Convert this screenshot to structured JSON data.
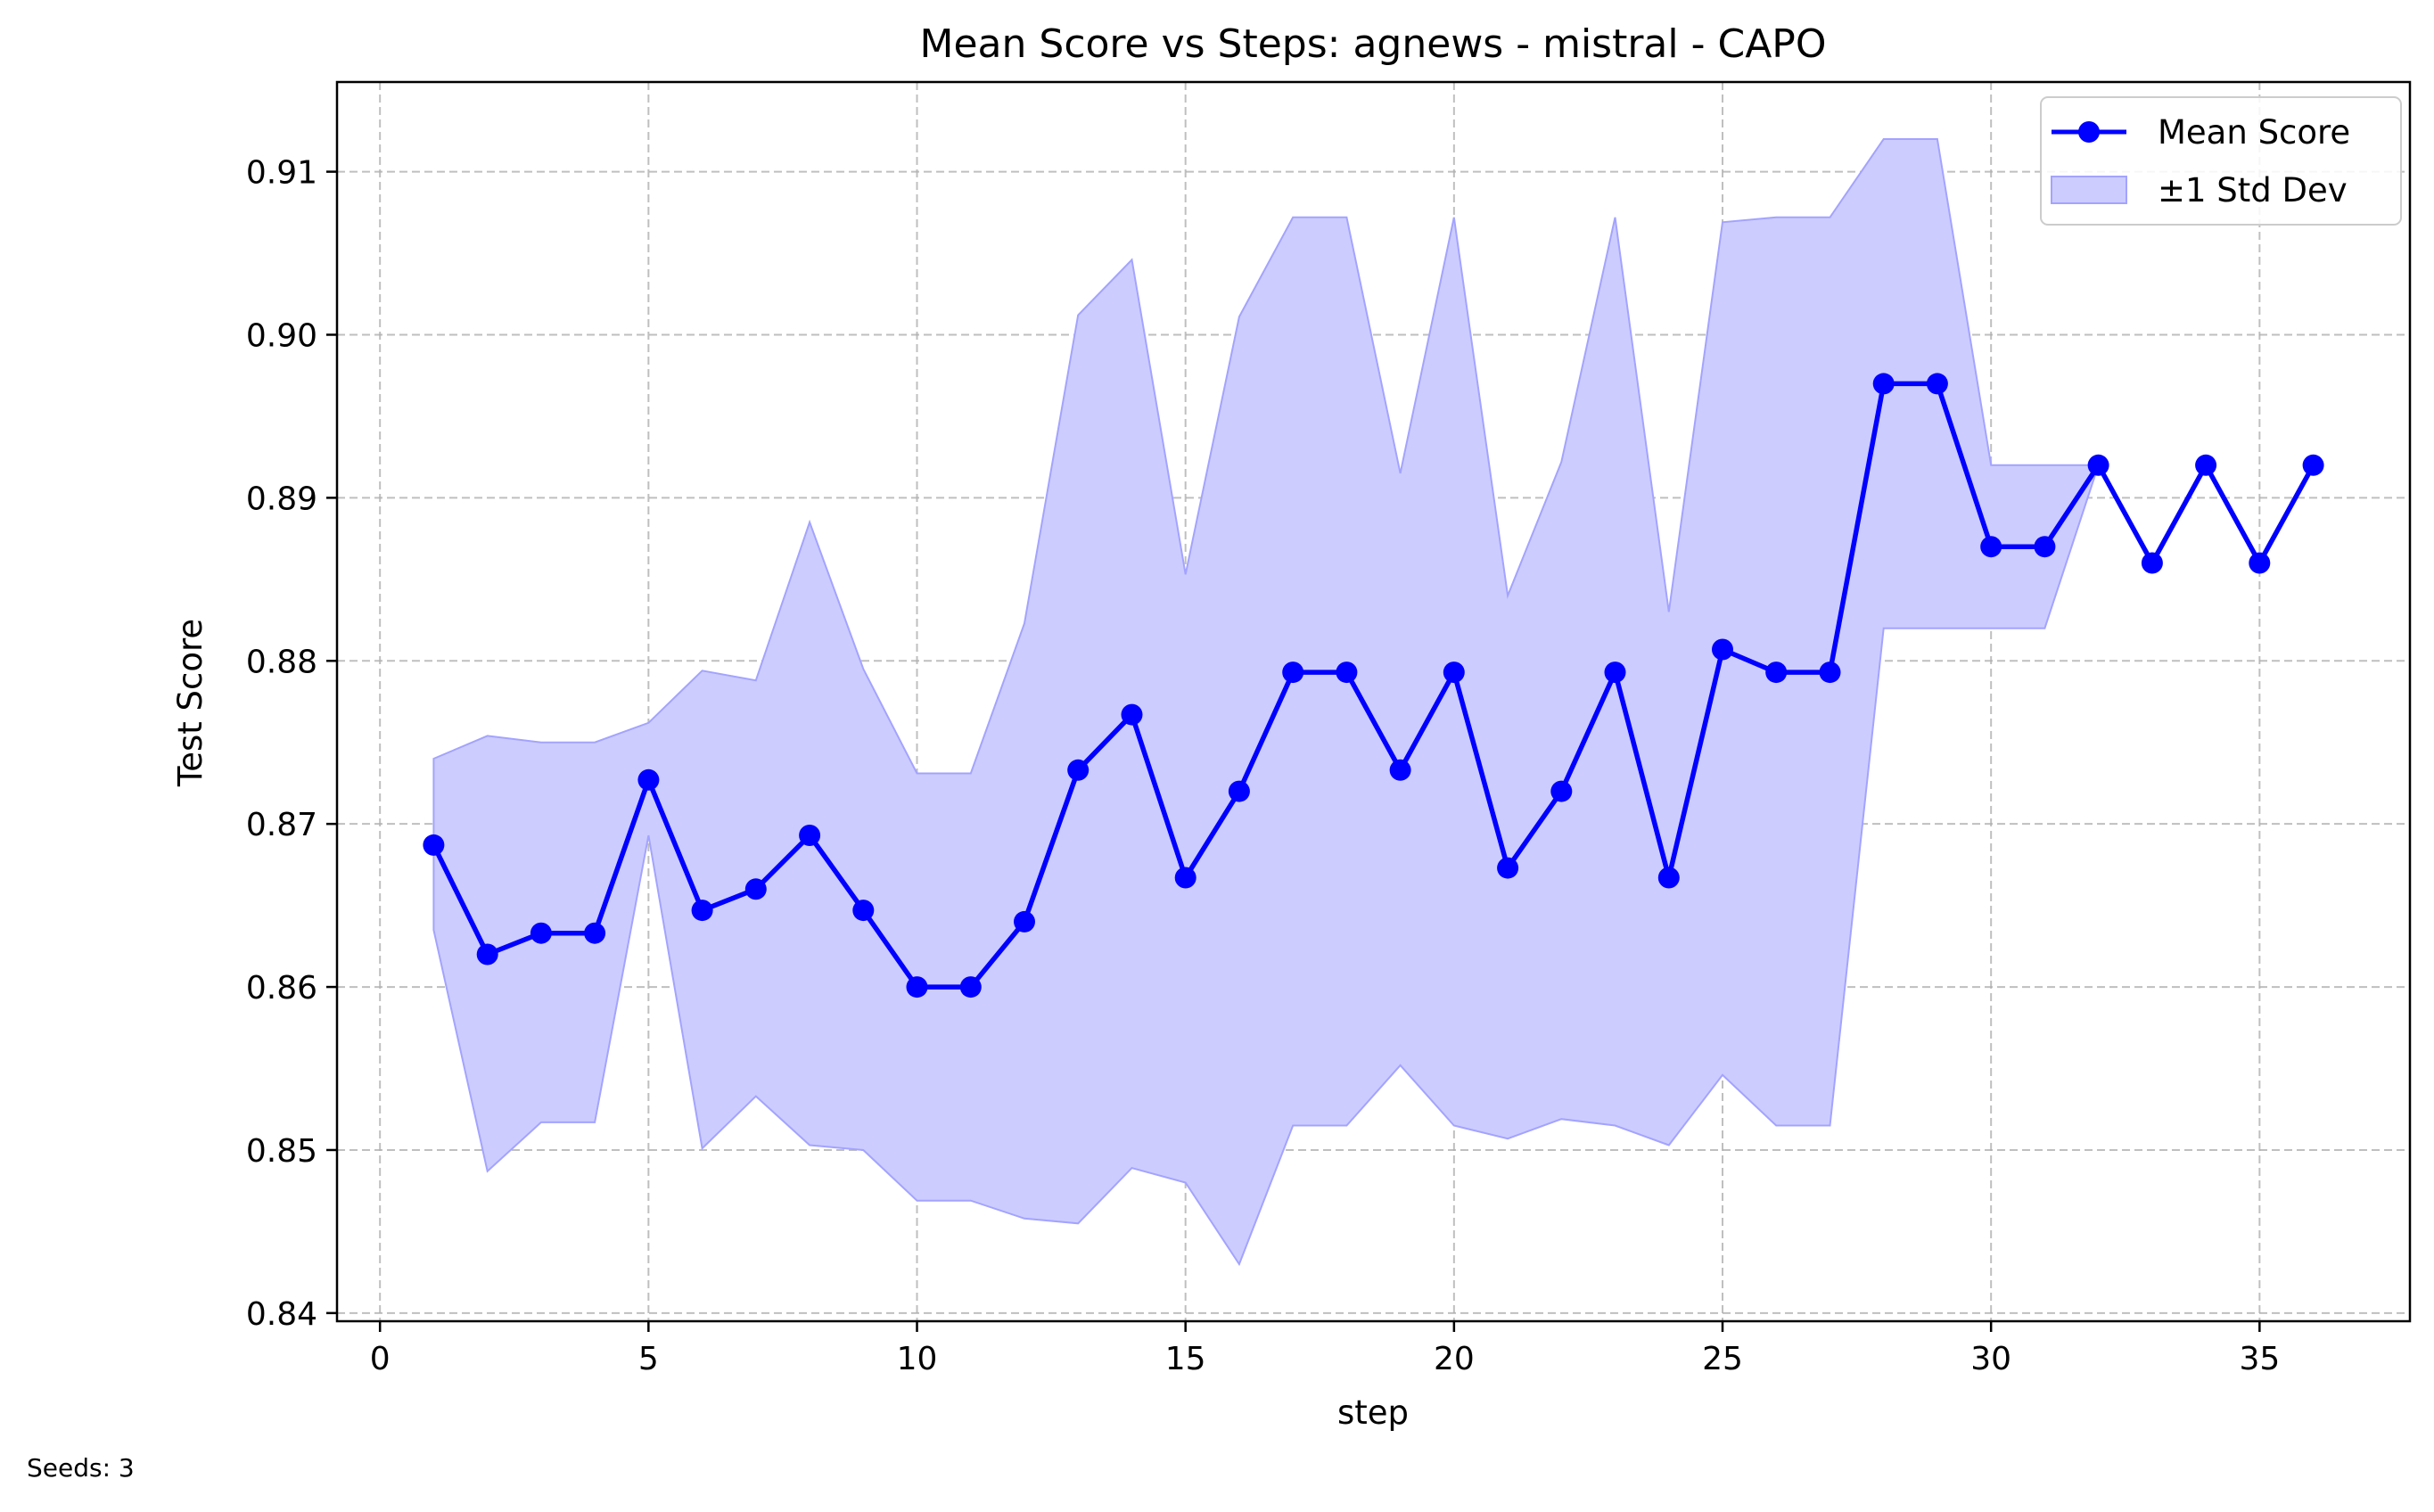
{
  "chart_data": {
    "type": "line",
    "title": "Mean Score vs Steps: agnews - mistral - CAPO",
    "xlabel": "step",
    "ylabel": "Test Score",
    "xlim": [
      -0.8,
      37.8
    ],
    "ylim": [
      0.8395,
      0.9155
    ],
    "xticks": [
      0,
      5,
      10,
      15,
      20,
      25,
      30,
      35
    ],
    "xtick_labels": [
      "0",
      "5",
      "10",
      "15",
      "20",
      "25",
      "30",
      "35"
    ],
    "yticks": [
      0.84,
      0.85,
      0.86,
      0.87,
      0.88,
      0.89,
      0.9,
      0.91
    ],
    "ytick_labels": [
      "0.84",
      "0.85",
      "0.86",
      "0.87",
      "0.88",
      "0.89",
      "0.90",
      "0.91"
    ],
    "grid": true,
    "legend_position": "top-right",
    "x": [
      1,
      2,
      3,
      4,
      5,
      6,
      7,
      8,
      9,
      10,
      11,
      12,
      13,
      14,
      15,
      16,
      17,
      18,
      19,
      20,
      21,
      22,
      23,
      24,
      25,
      26,
      27,
      28,
      29,
      30,
      31,
      32,
      33,
      34,
      35,
      36
    ],
    "series": [
      {
        "name": "Mean Score",
        "color": "#0000ff",
        "values": [
          0.8687,
          0.862,
          0.8633,
          0.8633,
          0.8727,
          0.8647,
          0.866,
          0.8693,
          0.8647,
          0.86,
          0.86,
          0.864,
          0.8733,
          0.8767,
          0.8667,
          0.872,
          0.8793,
          0.8793,
          0.8733,
          0.8793,
          0.8673,
          0.872,
          0.8793,
          0.8667,
          0.8807,
          0.8793,
          0.8793,
          0.897,
          0.897,
          0.887,
          0.887,
          0.892,
          0.886,
          0.892,
          0.886,
          0.892
        ]
      },
      {
        "name": "±1 Std Dev",
        "color": "#0000ff",
        "type": "band",
        "upper": [
          0.874,
          0.8754,
          0.875,
          0.875,
          0.8762,
          0.8794,
          0.8788,
          0.8885,
          0.8795,
          0.8731,
          0.8731,
          0.8823,
          0.9012,
          0.9046,
          0.8853,
          0.9011,
          0.9072,
          0.9072,
          0.8915,
          0.9072,
          0.884,
          0.8922,
          0.9072,
          0.883,
          0.9069,
          0.9072,
          0.9072,
          0.912,
          0.912,
          0.892,
          0.892,
          0.892,
          null,
          null,
          null,
          null
        ],
        "lower": [
          0.8635,
          0.8487,
          0.8517,
          0.8517,
          0.8693,
          0.8501,
          0.8533,
          0.8503,
          0.85,
          0.8469,
          0.8469,
          0.8458,
          0.8455,
          0.8489,
          0.848,
          0.843,
          0.8515,
          0.8515,
          0.8552,
          0.8515,
          0.8507,
          0.8519,
          0.8515,
          0.8503,
          0.8546,
          0.8515,
          0.8515,
          0.882,
          0.882,
          0.882,
          0.882,
          0.892,
          null,
          null,
          null,
          null
        ]
      }
    ]
  },
  "legend": {
    "mean_label": "Mean Score",
    "std_label": "±1 Std Dev"
  },
  "footnote": "Seeds: 3",
  "colors": {
    "line": "#0000ff",
    "band_fill": "#ccccff",
    "band_edge": "#a3a3ff",
    "grid": "#b0b0b0"
  }
}
